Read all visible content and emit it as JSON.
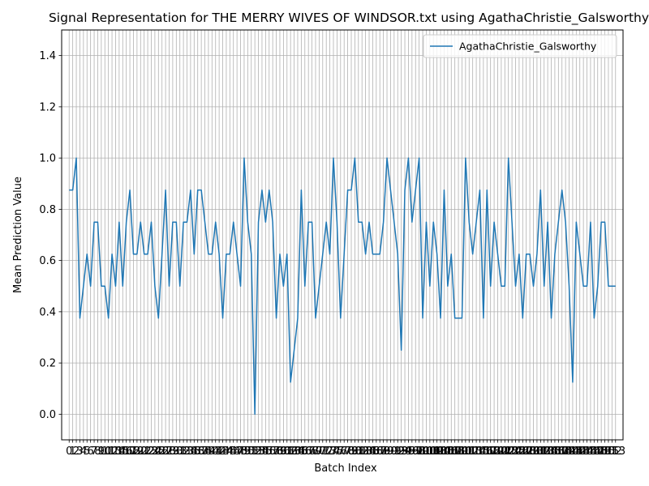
{
  "chart_data": {
    "type": "line",
    "title": "Signal Representation for THE MERRY WIVES OF WINDSOR.txt using AgathaChristie_Galsworthy",
    "xlabel": "Batch Index",
    "ylabel": "Mean Prediction Value",
    "xlim": [
      -2.1,
      155.1
    ],
    "ylim": [
      -0.1,
      1.5
    ],
    "yticks": [
      0.0,
      0.2,
      0.4,
      0.6,
      0.8,
      1.0,
      1.2,
      1.4
    ],
    "ytick_labels": [
      "0.0",
      "0.2",
      "0.4",
      "0.6",
      "0.8",
      "1.0",
      "1.2",
      "1.4"
    ],
    "xtick_labels": [
      "0",
      "1",
      "2",
      "3",
      "4",
      "5",
      "6",
      "7",
      "8",
      "9",
      "10",
      "11",
      "12",
      "13",
      "14",
      "15",
      "16",
      "17",
      "18",
      "19",
      "20",
      "21",
      "22",
      "23",
      "24",
      "25",
      "26",
      "27",
      "28",
      "29",
      "30",
      "31",
      "32",
      "33",
      "34",
      "35",
      "36",
      "37",
      "38",
      "39",
      "40",
      "41",
      "42",
      "43",
      "44",
      "45",
      "46",
      "47",
      "48",
      "49",
      "50",
      "51",
      "52",
      "53",
      "54",
      "55",
      "56",
      "57",
      "58",
      "59",
      "60",
      "61",
      "62",
      "63",
      "64",
      "65",
      "66",
      "67",
      "68",
      "69",
      "70",
      "71",
      "72",
      "73",
      "74",
      "75",
      "76",
      "77",
      "78",
      "79",
      "80",
      "81",
      "82",
      "83",
      "84",
      "85",
      "86",
      "87",
      "88",
      "89",
      "90",
      "91",
      "92",
      "93",
      "94",
      "95",
      "96",
      "97",
      "98",
      "99",
      "100",
      "101",
      "102",
      "103",
      "104",
      "105",
      "106",
      "107",
      "108",
      "109",
      "110",
      "111",
      "112",
      "113",
      "114",
      "115",
      "116",
      "117",
      "118",
      "119",
      "120",
      "121",
      "122",
      "123",
      "124",
      "125",
      "126",
      "127",
      "128",
      "129",
      "130",
      "131",
      "132",
      "133",
      "134",
      "135",
      "136",
      "137",
      "138",
      "139",
      "140",
      "141",
      "142",
      "143",
      "144",
      "145",
      "146",
      "147",
      "148",
      "149",
      "150",
      "151",
      "152",
      "153"
    ],
    "grid": true,
    "legend_position": "top-right",
    "series": [
      {
        "name": "AgathaChristie_Galsworthy",
        "color": "#1f77b4",
        "values": [
          0.875,
          0.875,
          1.0,
          0.375,
          0.5,
          0.625,
          0.5,
          0.75,
          0.75,
          0.5,
          0.5,
          0.375,
          0.625,
          0.5,
          0.75,
          0.5,
          0.75,
          0.875,
          0.625,
          0.625,
          0.75,
          0.625,
          0.625,
          0.75,
          0.5,
          0.375,
          0.625,
          0.875,
          0.5,
          0.75,
          0.75,
          0.5,
          0.75,
          0.75,
          0.875,
          0.625,
          0.875,
          0.875,
          0.75,
          0.625,
          0.625,
          0.75,
          0.625,
          0.375,
          0.625,
          0.625,
          0.75,
          0.625,
          0.5,
          1.0,
          0.75,
          0.625,
          0.0,
          0.75,
          0.875,
          0.75,
          0.875,
          0.75,
          0.375,
          0.625,
          0.5,
          0.625,
          0.125,
          0.25,
          0.375,
          0.875,
          0.5,
          0.75,
          0.75,
          0.375,
          0.5,
          0.625,
          0.75,
          0.625,
          1.0,
          0.75,
          0.375,
          0.625,
          0.875,
          0.875,
          1.0,
          0.75,
          0.75,
          0.625,
          0.75,
          0.625,
          0.625,
          0.625,
          0.75,
          1.0,
          0.875,
          0.75,
          0.625,
          0.25,
          0.875,
          1.0,
          0.75,
          0.875,
          1.0,
          0.375,
          0.75,
          0.5,
          0.75,
          0.625,
          0.375,
          0.875,
          0.5,
          0.625,
          0.375,
          0.375,
          0.375,
          1.0,
          0.75,
          0.625,
          0.75,
          0.875,
          0.375,
          0.875,
          0.5,
          0.75,
          0.625,
          0.5,
          0.5,
          1.0,
          0.75,
          0.5,
          0.625,
          0.375,
          0.625,
          0.625,
          0.5,
          0.625,
          0.875,
          0.5,
          0.75,
          0.375,
          0.625,
          0.75,
          0.875,
          0.75,
          0.5,
          0.125,
          0.75,
          0.625,
          0.5,
          0.5,
          0.75,
          0.375,
          0.5,
          0.75,
          0.75,
          0.5,
          0.5,
          0.5
        ]
      }
    ]
  }
}
